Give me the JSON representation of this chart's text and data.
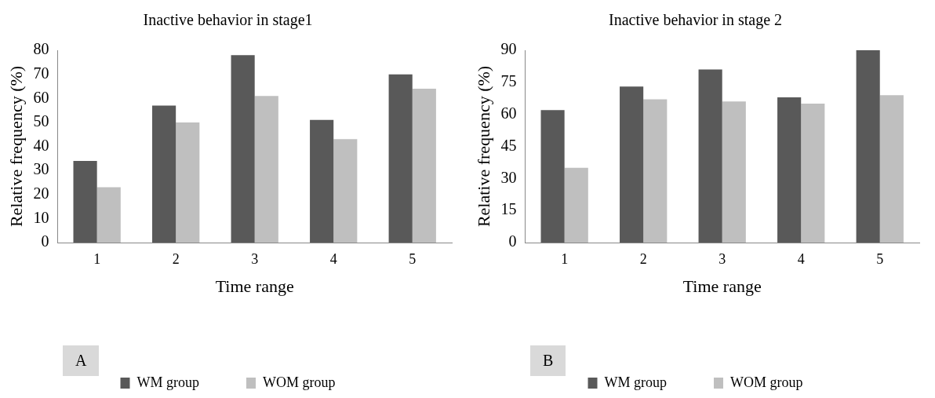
{
  "chart_data": [
    {
      "type": "bar",
      "title": "Inactive behavior in stage1",
      "xlabel": "Time range",
      "ylabel": "Relative frequency (%)",
      "categories": [
        "1",
        "2",
        "3",
        "4",
        "5"
      ],
      "series": [
        {
          "name": "WM group",
          "color": "#595959",
          "values": [
            34,
            57,
            78,
            51,
            70
          ]
        },
        {
          "name": "WOM group",
          "color": "#bfbfbf",
          "values": [
            23,
            50,
            61,
            43,
            64
          ]
        }
      ],
      "ylim": [
        0,
        80
      ],
      "yticks": [
        0,
        10,
        20,
        30,
        40,
        50,
        60,
        70,
        80
      ],
      "legend": "bottom",
      "annotations": [
        "A"
      ]
    },
    {
      "type": "bar",
      "title": "Inactive behavior in stage 2",
      "xlabel": "Time range",
      "ylabel": "Relative frequency (%)",
      "categories": [
        "1",
        "2",
        "3",
        "4",
        "5"
      ],
      "series": [
        {
          "name": "WM group",
          "color": "#595959",
          "values": [
            62,
            73,
            81,
            68,
            90
          ]
        },
        {
          "name": "WOM group",
          "color": "#bfbfbf",
          "values": [
            35,
            67,
            66,
            65,
            69
          ]
        }
      ],
      "ylim": [
        0,
        90
      ],
      "yticks": [
        0,
        15,
        30,
        45,
        60,
        75,
        90
      ],
      "legend": "bottom",
      "annotations": [
        "B"
      ]
    }
  ]
}
